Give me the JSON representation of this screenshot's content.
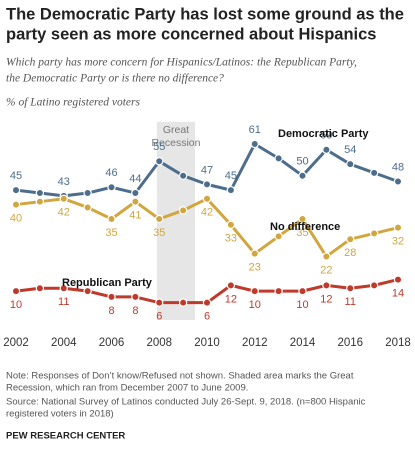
{
  "chart_data": {
    "type": "line",
    "title": [
      "The Democratic Party has lost some ground as the",
      "party seen as more concerned about Hispanics"
    ],
    "subtitle": [
      "Which party has more concern for Hispanics/Latinos: the Republican Party,",
      "the Democratic Party or is there no difference?"
    ],
    "y_label": "% of Latino registered voters",
    "x": [
      2002,
      2003,
      2004,
      2005,
      2006,
      2007,
      2008,
      2009,
      2010,
      2011,
      2012,
      2013,
      2014,
      2015,
      2016,
      2017,
      2018
    ],
    "xlim": [
      2002,
      2018
    ],
    "xticks": [
      2002,
      2004,
      2006,
      2008,
      2010,
      2012,
      2014,
      2016,
      2018
    ],
    "ylim": [
      0,
      70
    ],
    "shade": {
      "label": [
        "Great",
        "Recession"
      ],
      "range": [
        2007.9,
        2009.5
      ]
    },
    "series": [
      {
        "name": "Democratic Party",
        "color": "#4d6d8c",
        "values": [
          45,
          44,
          43,
          44,
          46,
          44,
          55,
          50,
          47,
          45,
          61,
          56,
          50,
          59,
          54,
          51,
          48
        ],
        "value_labels": [
          "45",
          null,
          "43",
          null,
          "46",
          "44",
          "55",
          null,
          "47",
          "45",
          "61",
          null,
          "50",
          "59",
          "54",
          null,
          "48"
        ]
      },
      {
        "name": "No difference",
        "color": "#d2a63e",
        "values": [
          40,
          41,
          42,
          39,
          35,
          41,
          35,
          38,
          42,
          33,
          23,
          29,
          35,
          22,
          28,
          30,
          32
        ],
        "value_labels": [
          "40",
          null,
          "42",
          null,
          "35",
          "41",
          "35",
          null,
          "42",
          "33",
          "23",
          null,
          "35",
          "22",
          "28",
          null,
          "32"
        ]
      },
      {
        "name": "Republican Party",
        "color": "#bf3a2b",
        "values": [
          10,
          11,
          11,
          10,
          8,
          8,
          6,
          6,
          6,
          12,
          10,
          10,
          10,
          12,
          11,
          12,
          14
        ],
        "value_labels": [
          "10",
          null,
          "11",
          null,
          "8",
          "8",
          "6",
          null,
          "6",
          "12",
          "10",
          null,
          "10",
          "12",
          "11",
          null,
          "14"
        ]
      }
    ],
    "notes": [
      "Note: Responses of Don’t know/Refused not shown. Shaded area marks the Great",
      "Recession, which ran from December 2007 to June 2009.",
      "Source: National Survey of Latinos conducted July 26-Sept. 9, 2018. (n=800 Hispanic",
      "registered voters in 2018)"
    ],
    "footer": "PEW RESEARCH CENTER"
  }
}
